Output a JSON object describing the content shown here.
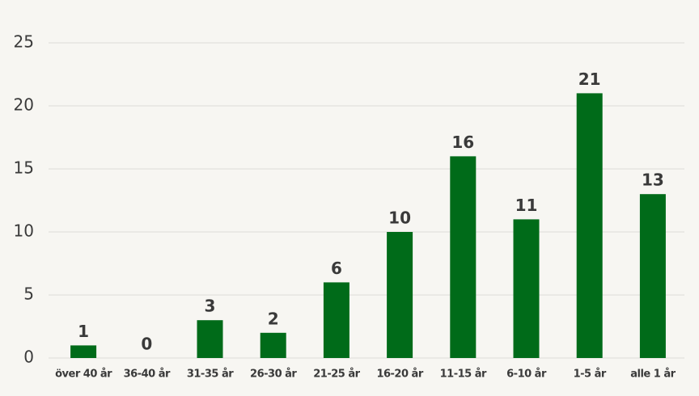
{
  "chart_data": {
    "type": "bar",
    "categories": [
      "över 40 år",
      "36-40 år",
      "31-35 år",
      "26-30 år",
      "21-25 år",
      "16-20 år",
      "11-15 år",
      "6-10 år",
      "1-5 år",
      "alle 1 år"
    ],
    "values": [
      1,
      0,
      3,
      2,
      6,
      10,
      16,
      11,
      21,
      13
    ],
    "color": "#006b19",
    "ylim": [
      0,
      25
    ],
    "yticks": [
      0,
      5,
      10,
      15,
      20,
      25
    ],
    "grid": true
  }
}
